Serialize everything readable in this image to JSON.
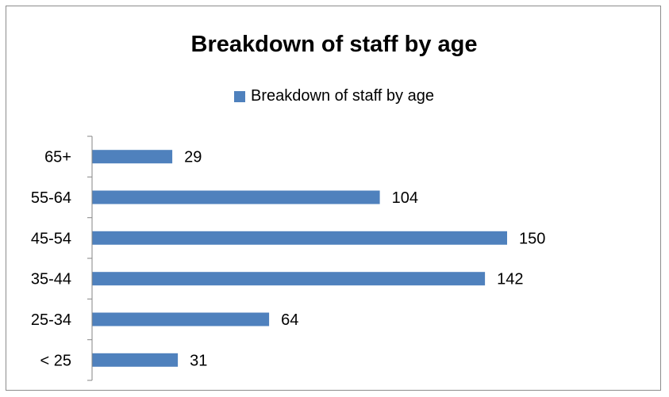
{
  "colors": {
    "bar": "#4f81bd",
    "axis": "#868686",
    "frame": "#8c8c8c"
  },
  "chart_data": {
    "type": "bar",
    "orientation": "horizontal",
    "title": "Breakdown of staff by age",
    "legend": "top",
    "grid": false,
    "categories": [
      "65+",
      "55-64",
      "45-54",
      "35-44",
      "25-34",
      "< 25"
    ],
    "series": [
      {
        "name": "Breakdown of staff by age",
        "values": [
          29,
          104,
          150,
          142,
          64,
          31
        ]
      }
    ],
    "xlim": [
      0,
      150
    ],
    "xlabel": "",
    "ylabel": ""
  }
}
